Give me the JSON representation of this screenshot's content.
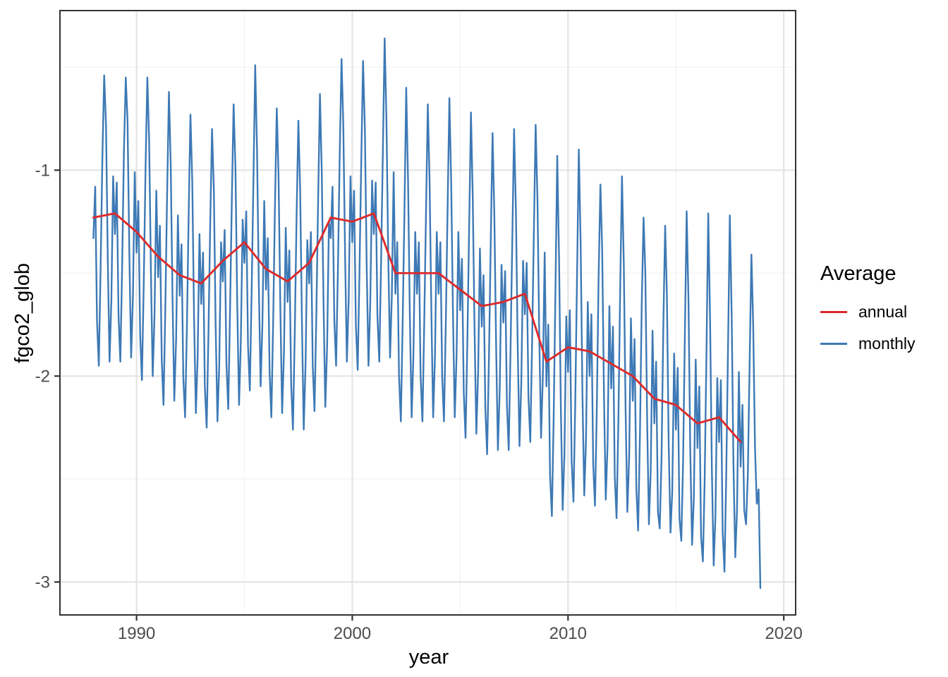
{
  "chart_data": {
    "type": "line",
    "title": "",
    "xlabel": "year",
    "ylabel": "fgco2_glob",
    "x_domain": [
      1986.45,
      2020.55
    ],
    "y_domain": [
      -3.16,
      -0.225
    ],
    "grid": true,
    "x_ticks": {
      "values": [
        1990,
        2000,
        2010,
        2020
      ],
      "labels": [
        "1990",
        "2000",
        "2010",
        "2020"
      ]
    },
    "x_minor": [
      1995,
      2005,
      2015
    ],
    "y_ticks": {
      "values": [
        -1,
        -2,
        -3
      ],
      "labels": [
        "-1",
        "-2",
        "-3"
      ]
    },
    "y_minor": [
      -0.5,
      -1.5,
      -2.5
    ],
    "legend": {
      "title": "Average",
      "position": "right",
      "entries": [
        {
          "label": "annual",
          "color": "#DD2A2A"
        },
        {
          "label": "monthly",
          "color": "#3D79B5"
        }
      ]
    },
    "series": [
      {
        "name": "monthly",
        "color": "#3D79B5",
        "width": 2.4,
        "x_start": 1988.0,
        "x_step": 0.0833333,
        "values": [
          -1.33,
          -1.08,
          -1.73,
          -1.95,
          -1.48,
          -0.93,
          -0.54,
          -0.78,
          -1.43,
          -1.93,
          -1.63,
          -1.03,
          -1.31,
          -1.06,
          -1.71,
          -1.93,
          -1.46,
          -0.91,
          -0.55,
          -0.76,
          -1.41,
          -1.91,
          -1.61,
          -1.01,
          -1.4,
          -1.15,
          -1.8,
          -2.02,
          -1.55,
          -1.0,
          -0.55,
          -0.85,
          -1.5,
          -2.0,
          -1.7,
          -1.1,
          -1.52,
          -1.27,
          -1.92,
          -2.14,
          -1.67,
          -1.12,
          -0.62,
          -0.97,
          -1.62,
          -2.12,
          -1.82,
          -1.22,
          -1.61,
          -1.36,
          -2.01,
          -2.2,
          -1.76,
          -1.21,
          -0.73,
          -1.06,
          -1.71,
          -2.18,
          -1.91,
          -1.31,
          -1.65,
          -1.4,
          -2.05,
          -2.25,
          -1.8,
          -1.25,
          -0.8,
          -1.1,
          -1.75,
          -2.22,
          -1.95,
          -1.35,
          -1.54,
          -1.29,
          -1.94,
          -2.16,
          -1.69,
          -1.14,
          -0.68,
          -0.99,
          -1.64,
          -2.14,
          -1.84,
          -1.24,
          -1.45,
          -1.2,
          -1.85,
          -2.07,
          -1.6,
          -1.05,
          -0.49,
          -0.9,
          -1.55,
          -2.05,
          -1.75,
          -1.15,
          -1.58,
          -1.33,
          -1.98,
          -2.2,
          -1.73,
          -1.18,
          -0.7,
          -1.03,
          -1.68,
          -2.18,
          -1.88,
          -1.28,
          -1.64,
          -1.39,
          -2.04,
          -2.26,
          -1.79,
          -1.24,
          -0.76,
          -1.09,
          -1.74,
          -2.26,
          -1.94,
          -1.34,
          -1.55,
          -1.3,
          -1.95,
          -2.17,
          -1.7,
          -1.15,
          -0.63,
          -1.0,
          -1.65,
          -2.15,
          -1.85,
          -1.25,
          -1.33,
          -1.08,
          -1.73,
          -1.95,
          -1.48,
          -0.93,
          -0.46,
          -0.78,
          -1.43,
          -1.93,
          -1.63,
          -1.03,
          -1.35,
          -1.1,
          -1.75,
          -1.97,
          -1.5,
          -0.95,
          -0.47,
          -0.8,
          -1.45,
          -1.95,
          -1.65,
          -1.05,
          -1.31,
          -1.06,
          -1.71,
          -1.93,
          -1.46,
          -0.91,
          -0.36,
          -0.76,
          -1.41,
          -1.91,
          -1.61,
          -1.01,
          -1.6,
          -1.35,
          -2.0,
          -2.22,
          -1.75,
          -1.2,
          -0.6,
          -1.05,
          -1.7,
          -2.2,
          -1.9,
          -1.3,
          -1.6,
          -1.35,
          -2.0,
          -2.22,
          -1.75,
          -1.2,
          -0.68,
          -1.05,
          -1.7,
          -2.2,
          -1.9,
          -1.3,
          -1.6,
          -1.35,
          -2.0,
          -2.22,
          -1.75,
          -1.2,
          -0.65,
          -1.05,
          -1.7,
          -2.2,
          -1.9,
          -1.3,
          -1.68,
          -1.43,
          -2.08,
          -2.3,
          -1.83,
          -1.28,
          -0.72,
          -1.13,
          -1.78,
          -2.28,
          -1.98,
          -1.38,
          -1.76,
          -1.51,
          -2.16,
          -2.38,
          -1.91,
          -1.36,
          -0.82,
          -1.21,
          -1.86,
          -2.36,
          -2.06,
          -1.46,
          -1.74,
          -1.49,
          -2.14,
          -2.36,
          -1.89,
          -1.34,
          -0.8,
          -1.19,
          -1.84,
          -2.34,
          -2.04,
          -1.44,
          -1.7,
          -1.45,
          -2.1,
          -2.32,
          -1.85,
          -1.3,
          -0.78,
          -1.15,
          -1.8,
          -2.3,
          -2.0,
          -1.4,
          -2.05,
          -1.75,
          -2.48,
          -2.68,
          -2.21,
          -1.58,
          -0.93,
          -1.43,
          -2.15,
          -2.65,
          -2.38,
          -1.71,
          -1.98,
          -1.68,
          -2.41,
          -2.61,
          -2.14,
          -1.51,
          -0.9,
          -1.36,
          -2.08,
          -2.58,
          -2.31,
          -1.64,
          -2.0,
          -1.7,
          -2.43,
          -2.63,
          -2.16,
          -1.53,
          -1.07,
          -1.38,
          -2.1,
          -2.6,
          -2.33,
          -1.66,
          -2.06,
          -1.76,
          -2.49,
          -2.69,
          -2.22,
          -1.59,
          -1.03,
          -1.44,
          -2.16,
          -2.66,
          -2.39,
          -1.72,
          -2.12,
          -1.82,
          -2.55,
          -2.75,
          -2.28,
          -1.65,
          -1.23,
          -1.5,
          -2.22,
          -2.72,
          -2.45,
          -1.78,
          -2.23,
          -1.93,
          -2.66,
          -2.74,
          -2.39,
          -1.76,
          -1.27,
          -1.61,
          -2.33,
          -2.76,
          -2.56,
          -1.89,
          -2.26,
          -1.96,
          -2.69,
          -2.8,
          -2.42,
          -1.79,
          -1.2,
          -1.64,
          -2.36,
          -2.82,
          -2.59,
          -1.92,
          -2.35,
          -2.05,
          -2.78,
          -2.9,
          -2.51,
          -1.88,
          -1.21,
          -1.73,
          -2.45,
          -2.92,
          -2.68,
          -2.01,
          -2.32,
          -2.02,
          -2.75,
          -2.95,
          -2.48,
          -1.85,
          -1.22,
          -1.7,
          -2.42,
          -2.88,
          -2.65,
          -1.98,
          -2.44,
          -2.14,
          -2.65,
          -2.72,
          -2.48,
          -1.95,
          -1.41,
          -1.75,
          -2.35,
          -2.62,
          -2.55,
          -3.03
        ]
      },
      {
        "name": "annual",
        "color": "#DD2A2A",
        "width": 2.9,
        "x_start": 1988,
        "x_step": 1,
        "values": [
          -1.23,
          -1.21,
          -1.3,
          -1.42,
          -1.51,
          -1.55,
          -1.44,
          -1.35,
          -1.48,
          -1.54,
          -1.45,
          -1.23,
          -1.25,
          -1.21,
          -1.5,
          -1.5,
          -1.5,
          -1.58,
          -1.66,
          -1.64,
          -1.6,
          -1.93,
          -1.86,
          -1.88,
          -1.94,
          -2.0,
          -2.11,
          -2.14,
          -2.23,
          -2.2,
          -2.32
        ]
      }
    ],
    "style": {
      "panel_border_color": "#333333",
      "grid_major_color": "#E4E4E4",
      "grid_minor_color": "#F2F2F2",
      "tick_color": "#333333",
      "tick_label_color": "#4D4D4D"
    }
  }
}
